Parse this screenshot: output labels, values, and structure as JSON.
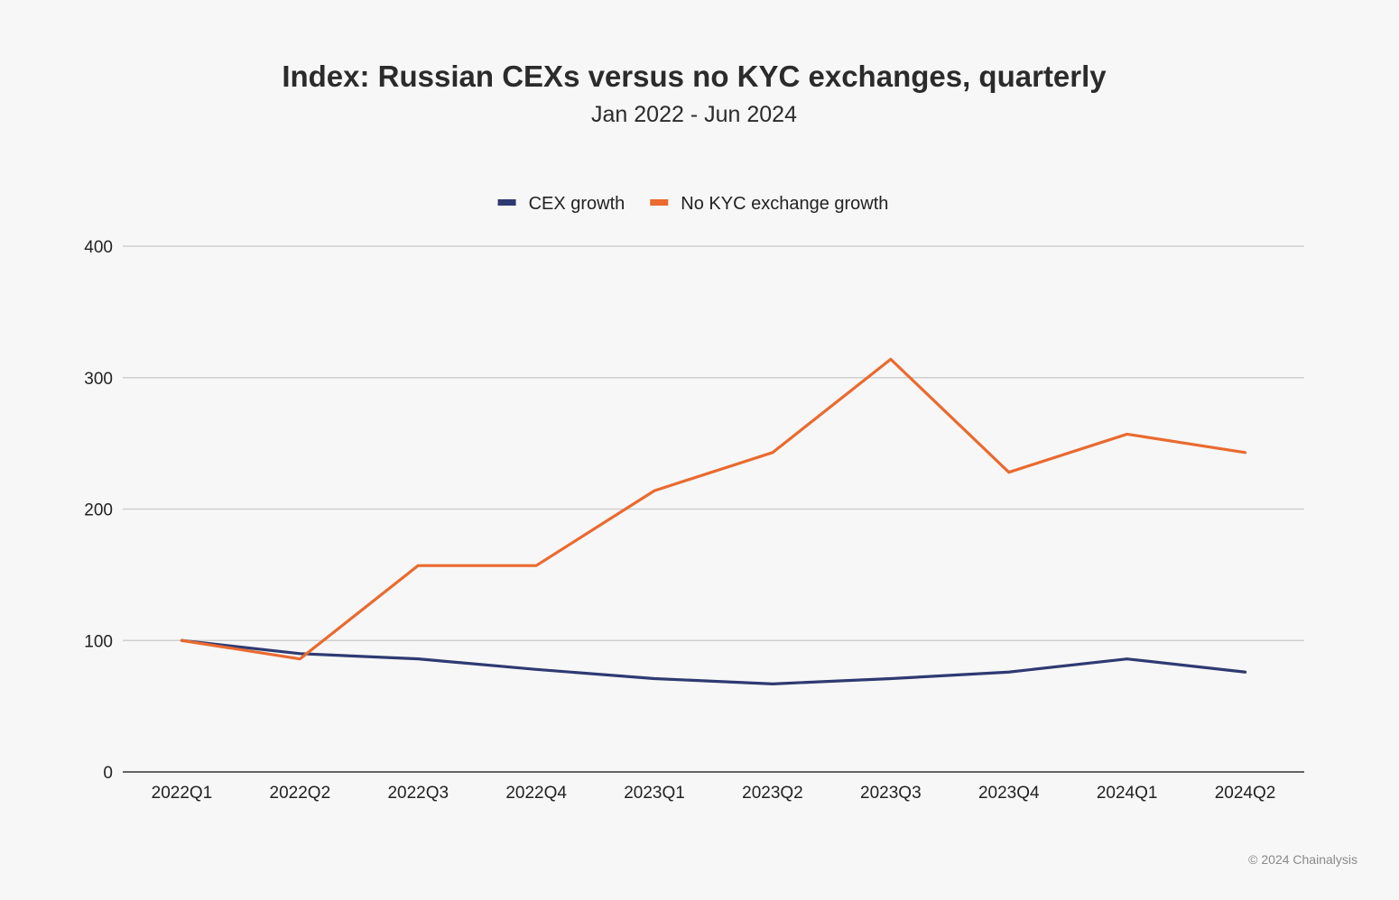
{
  "chart_data": {
    "type": "line",
    "title": "Index: Russian CEXs versus no KYC exchanges, quarterly",
    "subtitle": "Jan 2022 - Jun 2024",
    "categories": [
      "2022Q1",
      "2022Q2",
      "2022Q3",
      "2022Q4",
      "2023Q1",
      "2023Q2",
      "2023Q3",
      "2023Q4",
      "2024Q1",
      "2024Q2"
    ],
    "series": [
      {
        "name": "CEX growth",
        "color": "#2f3a72",
        "values": [
          100,
          90,
          86,
          78,
          71,
          67,
          71,
          76,
          86,
          76
        ]
      },
      {
        "name": "No KYC exchange growth",
        "color": "#ea6a2f",
        "values": [
          100,
          86,
          157,
          157,
          214,
          243,
          314,
          228,
          257,
          243
        ]
      }
    ],
    "yticks": [
      0,
      100,
      200,
      300,
      400
    ],
    "ylim": [
      0,
      400
    ],
    "xlabel": "",
    "ylabel": "",
    "grid": true,
    "legend_position": "top-center"
  },
  "footer": {
    "copyright": "© 2024 Chainalysis"
  }
}
